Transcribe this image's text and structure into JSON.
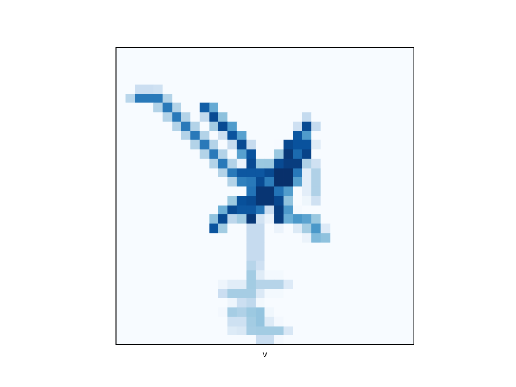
{
  "chart_data": {
    "type": "heatmap",
    "xlabel": "v",
    "ylabel": "",
    "title": "",
    "grid": false,
    "show_ticks": false,
    "colormap": "Blues",
    "colormap_stops": [
      "#f7fbff",
      "#deebf7",
      "#c6dbef",
      "#9ecae1",
      "#6baed6",
      "#4292c6",
      "#2171b5",
      "#08519c",
      "#08306b"
    ],
    "value_range": [
      0,
      1
    ],
    "grid_size": [
      32,
      32
    ],
    "strokes": [
      {
        "points": [
          [
            2.2,
            5.3
          ],
          [
            4.3,
            5.3
          ]
        ],
        "value": 0.72
      },
      {
        "points": [
          [
            4.3,
            5.3
          ],
          [
            13.0,
            14.0
          ]
        ],
        "value": 0.72
      },
      {
        "points": [
          [
            13.0,
            14.0
          ],
          [
            15.5,
            15.0
          ]
        ],
        "value": 0.72
      },
      {
        "points": [
          [
            9.8,
            6.6
          ],
          [
            11.3,
            8.3
          ],
          [
            12.7,
            9.3
          ],
          [
            14.5,
            12.0
          ],
          [
            15.3,
            13.8
          ]
        ],
        "value": 0.9
      },
      {
        "points": [
          [
            13.3,
            13.5
          ],
          [
            15.5,
            13.5
          ]
        ],
        "value": 0.85
      },
      {
        "points": [
          [
            20.7,
            8.3
          ],
          [
            19.5,
            10.0
          ],
          [
            18.5,
            11.5
          ],
          [
            17.0,
            13.0
          ],
          [
            15.5,
            14.5
          ],
          [
            14.5,
            16.3
          ],
          [
            12.5,
            17.3
          ],
          [
            10.7,
            19.3
          ]
        ],
        "value": 0.9
      },
      {
        "points": [
          [
            18.5,
            10.8
          ],
          [
            17.5,
            14.0
          ],
          [
            15.5,
            16.5
          ],
          [
            14.5,
            18.5
          ]
        ],
        "value": 0.97
      },
      {
        "points": [
          [
            20.6,
            10.8
          ],
          [
            19.3,
            13.0
          ],
          [
            18.0,
            15.0
          ],
          [
            17.5,
            18.5
          ]
        ],
        "value": 0.95
      },
      {
        "points": [
          [
            17.3,
            16.5
          ],
          [
            19.0,
            18.5
          ],
          [
            21.3,
            19.0
          ],
          [
            22.0,
            20.5
          ]
        ],
        "value": 0.6
      },
      {
        "points": [
          [
            21.3,
            13.0
          ],
          [
            21.3,
            16.0
          ]
        ],
        "value": 0.32
      },
      {
        "points": [
          [
            15.0,
            19.5
          ],
          [
            15.0,
            23.0
          ],
          [
            14.5,
            25.5
          ]
        ],
        "value": 0.36
      },
      {
        "points": [
          [
            15.5,
            25.5
          ],
          [
            17.8,
            25.5
          ]
        ],
        "value": 0.3
      },
      {
        "points": [
          [
            12.0,
            26.3
          ],
          [
            14.8,
            26.3
          ]
        ],
        "value": 0.35
      },
      {
        "points": [
          [
            14.2,
            26.3
          ],
          [
            14.0,
            28.0
          ],
          [
            12.5,
            28.5
          ]
        ],
        "value": 0.35
      },
      {
        "points": [
          [
            14.5,
            28.0
          ],
          [
            15.0,
            30.5
          ]
        ],
        "value": 0.38
      },
      {
        "points": [
          [
            15.0,
            30.5
          ],
          [
            17.8,
            30.5
          ]
        ],
        "value": 0.36
      },
      {
        "points": [
          [
            13.0,
            29.0
          ],
          [
            13.0,
            30.0
          ]
        ],
        "value": 0.3
      },
      {
        "points": [
          [
            15.5,
            28.5
          ],
          [
            16.0,
            31.2
          ]
        ],
        "value": 0.4
      }
    ],
    "blobs": [
      {
        "cx": 18.0,
        "cy": 13.8,
        "r": 2.1,
        "value": 1.0
      },
      {
        "cx": 16.0,
        "cy": 15.8,
        "r": 1.8,
        "value": 0.98
      },
      {
        "cx": 19.0,
        "cy": 12.3,
        "r": 1.3,
        "value": 0.95
      },
      {
        "cx": 14.0,
        "cy": 17.5,
        "r": 1.0,
        "value": 0.85
      },
      {
        "cx": 21.3,
        "cy": 19.5,
        "r": 0.8,
        "value": 0.55
      },
      {
        "cx": 14.5,
        "cy": 30.0,
        "r": 1.0,
        "value": 0.35
      }
    ]
  }
}
